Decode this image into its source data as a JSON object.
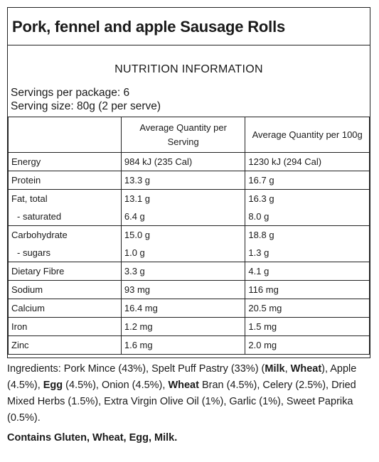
{
  "product_title": "Pork, fennel and apple Sausage Rolls",
  "nutrition_heading": "NUTRITION INFORMATION",
  "servings_per_package": "Servings per package: 6",
  "serving_size": "Serving size: 80g (2 per serve)",
  "columns": {
    "per_serving": "Average Quantity per Serving",
    "per_100g": "Average Quantity per 100g"
  },
  "rows": {
    "energy": {
      "label": "Energy",
      "serving": "984 kJ (235 Cal)",
      "per100": "1230 kJ (294 Cal)"
    },
    "protein": {
      "label": "Protein",
      "serving": "13.3 g",
      "per100": "16.7 g"
    },
    "fat_total": {
      "label": "Fat, total",
      "serving": "13.1 g",
      "per100": "16.3 g"
    },
    "saturated": {
      "label": "- saturated",
      "serving": "6.4 g",
      "per100": "8.0 g"
    },
    "carbohydrate": {
      "label": "Carbohydrate",
      "serving": "15.0 g",
      "per100": "18.8 g"
    },
    "sugars": {
      "label": "- sugars",
      "serving": "1.0 g",
      "per100": "1.3 g"
    },
    "fibre": {
      "label": "Dietary Fibre",
      "serving": "3.3 g",
      "per100": "4.1 g"
    },
    "sodium": {
      "label": "Sodium",
      "serving": "93 mg",
      "per100": "116 mg"
    },
    "calcium": {
      "label": "Calcium",
      "serving": "16.4 mg",
      "per100": "20.5 mg"
    },
    "iron": {
      "label": "Iron",
      "serving": "1.2 mg",
      "per100": "1.5 mg"
    },
    "zinc": {
      "label": "Zinc",
      "serving": "1.6 mg",
      "per100": "2.0 mg"
    }
  },
  "ingredients": {
    "p1": "Ingredients: Pork Mince (43%), Spelt Puff Pastry (33%) (",
    "milk": "Milk",
    "p2": ", ",
    "wheat1": "Wheat",
    "p3": "), Apple (4.5%), ",
    "egg": "Egg",
    "p4": " (4.5%), Onion (4.5%), ",
    "wheat2": "Wheat",
    "p5": " Bran (4.5%), Celery (2.5%), Dried Mixed Herbs (1.5%), Extra Virgin Olive Oil (1%), Garlic (1%), Sweet Paprika (0.5%)."
  },
  "contains": "Contains Gluten, Wheat, Egg, Milk."
}
